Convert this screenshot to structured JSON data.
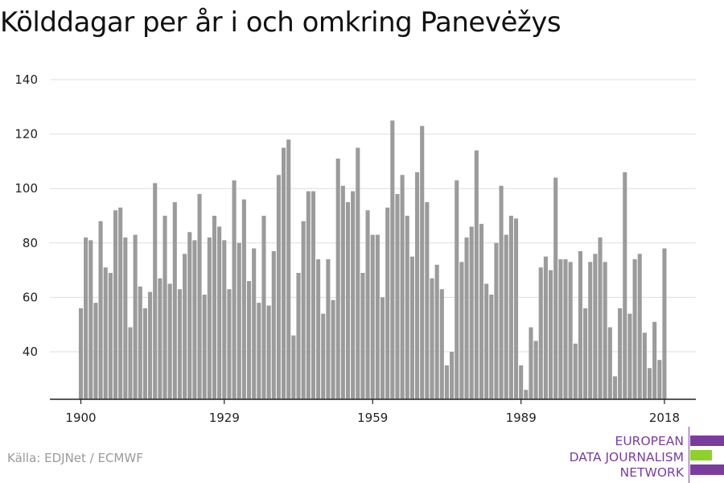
{
  "title": "Kölddagar per år i och omkring Panevėžys",
  "source": "Källa: EDJNet / ECMWF",
  "logo": {
    "lines": [
      "EUROPEAN",
      "DATA JOURNALISM",
      "NETWORK"
    ],
    "bar_colors": [
      "#7a3d9e",
      "#8fd12a",
      "#7a3d9e"
    ],
    "text_color": "#7a3d9e"
  },
  "colors": {
    "bar": "#9b9b9b",
    "grid": "#dddddd",
    "axis": "#222222"
  },
  "chart_data": {
    "type": "bar",
    "title": "Kölddagar per år i och omkring Panevėžys",
    "xlabel": "",
    "ylabel": "",
    "ylim": [
      22.5,
      144
    ],
    "yticks": [
      40,
      60,
      80,
      100,
      120,
      140
    ],
    "xticks": [
      1900,
      1929,
      1959,
      1989,
      2018
    ],
    "years": [
      1900,
      1901,
      1902,
      1903,
      1904,
      1905,
      1906,
      1907,
      1908,
      1909,
      1910,
      1911,
      1912,
      1913,
      1914,
      1915,
      1916,
      1917,
      1918,
      1919,
      1920,
      1921,
      1922,
      1923,
      1924,
      1925,
      1926,
      1927,
      1928,
      1929,
      1930,
      1931,
      1932,
      1933,
      1934,
      1935,
      1936,
      1937,
      1938,
      1939,
      1940,
      1941,
      1942,
      1943,
      1944,
      1945,
      1946,
      1947,
      1948,
      1949,
      1950,
      1951,
      1952,
      1953,
      1954,
      1955,
      1956,
      1957,
      1958,
      1959,
      1960,
      1961,
      1962,
      1963,
      1964,
      1965,
      1966,
      1967,
      1968,
      1969,
      1970,
      1971,
      1972,
      1973,
      1974,
      1975,
      1976,
      1977,
      1978,
      1979,
      1980,
      1981,
      1982,
      1983,
      1984,
      1985,
      1986,
      1987,
      1988,
      1989,
      1990,
      1991,
      1992,
      1993,
      1994,
      1995,
      1996,
      1997,
      1998,
      1999,
      2000,
      2001,
      2002,
      2003,
      2004,
      2005,
      2006,
      2007,
      2008,
      2009,
      2010,
      2011,
      2012,
      2013,
      2014,
      2015,
      2016,
      2017,
      2018
    ],
    "values": [
      56,
      82,
      81,
      58,
      88,
      71,
      69,
      92,
      93,
      82,
      49,
      83,
      64,
      56,
      62,
      102,
      67,
      90,
      65,
      95,
      63,
      76,
      84,
      81,
      98,
      61,
      82,
      90,
      86,
      81,
      63,
      103,
      80,
      96,
      66,
      78,
      58,
      90,
      57,
      77,
      105,
      115,
      118,
      46,
      69,
      88,
      99,
      99,
      74,
      54,
      74,
      59,
      111,
      101,
      95,
      99,
      115,
      69,
      92,
      83,
      83,
      60,
      93,
      125,
      98,
      105,
      90,
      75,
      106,
      123,
      95,
      67,
      72,
      63,
      35,
      40,
      103,
      73,
      82,
      86,
      114,
      87,
      65,
      61,
      80,
      101,
      83,
      90,
      89,
      35,
      26,
      49,
      44,
      71,
      75,
      70,
      104,
      74,
      74,
      73,
      43,
      77,
      56,
      73,
      76,
      82,
      73,
      49,
      31,
      56,
      106,
      54,
      74,
      76,
      47,
      34,
      51,
      37,
      78
    ]
  }
}
